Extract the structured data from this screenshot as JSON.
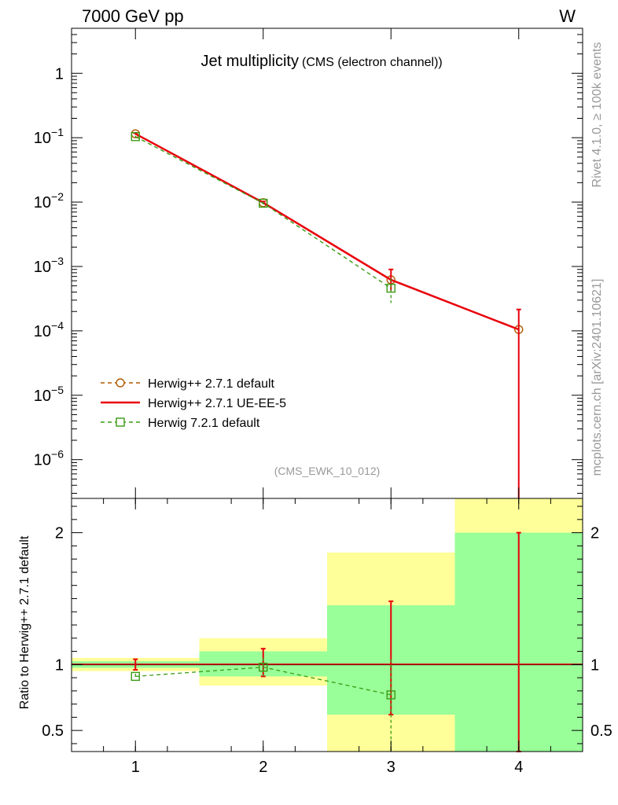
{
  "header": {
    "energy_label": "7000 GeV pp",
    "process_label": "W"
  },
  "side_labels": {
    "rivet": "Rivet 4.1.0, ≥ 100k events",
    "mcplots": "mcplots.cern.ch [arXiv:2401.10621]"
  },
  "colors": {
    "herwigpp_default": "#b35900",
    "herwigpp_ueee5": "#e8000b",
    "herwig72_default": "#3a9a14",
    "band_inner": "#99ff99",
    "band_outer": "#ffff99"
  },
  "chart_data": [
    {
      "type": "line",
      "title": "Jet multiplicity",
      "subtitle": "(CMS (electron channel))",
      "watermark": "(CMS_EWK_10_012)",
      "xlabel": "",
      "ylabel": "",
      "yscale": "log",
      "xlim": [
        0.5,
        4.5
      ],
      "ylim": [
        2.5e-07,
        5
      ],
      "x_ticks": [
        "1",
        "2",
        "3",
        "4"
      ],
      "y_ticks": [
        {
          "value": 1,
          "label": "1",
          "exp": ""
        },
        {
          "value": 0.1,
          "label": "10",
          "exp": "−1"
        },
        {
          "value": 0.01,
          "label": "10",
          "exp": "−2"
        },
        {
          "value": 0.001,
          "label": "10",
          "exp": "−3"
        },
        {
          "value": 0.0001,
          "label": "10",
          "exp": "−4"
        },
        {
          "value": 1e-05,
          "label": "10",
          "exp": "−5"
        },
        {
          "value": 1e-06,
          "label": "10",
          "exp": "−6"
        }
      ],
      "legend_position": "bottom-left",
      "series": [
        {
          "name": "Herwig++ 2.7.1 default",
          "style": "dashed",
          "marker": "circle",
          "x": [
            1,
            2,
            3,
            4
          ],
          "y": [
            0.115,
            0.0098,
            0.00062,
            0.000105
          ],
          "err_low": [
            0.003,
            0.0004,
            0.0002,
            0.000105
          ],
          "err_high": [
            0.003,
            0.0004,
            0.00028,
            0.00011
          ]
        },
        {
          "name": "Herwig++ 2.7.1 UE-EE-5",
          "style": "solid",
          "marker": "none",
          "x": [
            1,
            2,
            3,
            4
          ],
          "y": [
            0.115,
            0.0098,
            0.00062,
            0.000105
          ],
          "err_low": [
            0.003,
            0.0004,
            0.0002,
            0.000105
          ],
          "err_high": [
            0.003,
            0.0004,
            0.00028,
            0.00011
          ]
        },
        {
          "name": "Herwig 7.2.1 default",
          "style": "dashed",
          "marker": "square",
          "x": [
            1,
            2,
            3
          ],
          "y": [
            0.104,
            0.0096,
            0.00046
          ],
          "err_low": [
            0.003,
            0.0004,
            0.00019
          ],
          "err_high": [
            0.003,
            0.0004,
            0.00019
          ]
        }
      ]
    },
    {
      "type": "line",
      "title": "",
      "xlabel": "",
      "ylabel": "Ratio to Herwig++ 2.7.1 default",
      "xlim": [
        0.5,
        4.5
      ],
      "ylim": [
        0.34,
        2.26
      ],
      "x_ticks": [
        "1",
        "2",
        "3",
        "4"
      ],
      "y_ticks": [
        {
          "value": 0.5,
          "label": "0.5"
        },
        {
          "value": 1,
          "label": "1"
        },
        {
          "value": 2,
          "label": "2"
        }
      ],
      "bands": [
        {
          "x_low": 0.5,
          "x_high": 1.5,
          "inner": [
            0.975,
            1.025
          ],
          "outer": [
            0.95,
            1.05
          ]
        },
        {
          "x_low": 1.5,
          "x_high": 2.5,
          "inner": [
            0.91,
            1.1
          ],
          "outer": [
            0.84,
            1.2
          ]
        },
        {
          "x_low": 2.5,
          "x_high": 3.5,
          "inner": [
            0.62,
            1.45
          ],
          "outer": [
            0.3,
            1.85
          ]
        },
        {
          "x_low": 3.5,
          "x_high": 4.5,
          "inner": [
            0.3,
            2.0
          ],
          "outer": [
            0.3,
            2.3
          ]
        }
      ],
      "series": [
        {
          "name": "Herwig++ 2.7.1 UE-EE-5",
          "x": [
            1,
            2,
            3,
            4
          ],
          "y": [
            1,
            1,
            1,
            1
          ],
          "err_low": [
            0.04,
            0.09,
            0.38,
            0.7
          ],
          "err_high": [
            0.04,
            0.12,
            0.48,
            1.0
          ]
        },
        {
          "name": "Herwig 7.2.1 default",
          "x": [
            1,
            2,
            3
          ],
          "y": [
            0.91,
            0.98,
            0.77
          ],
          "err_low": [
            0.02,
            0.07,
            0.45
          ],
          "err_high": [
            0.02,
            0.07,
            0.27
          ]
        }
      ]
    }
  ]
}
